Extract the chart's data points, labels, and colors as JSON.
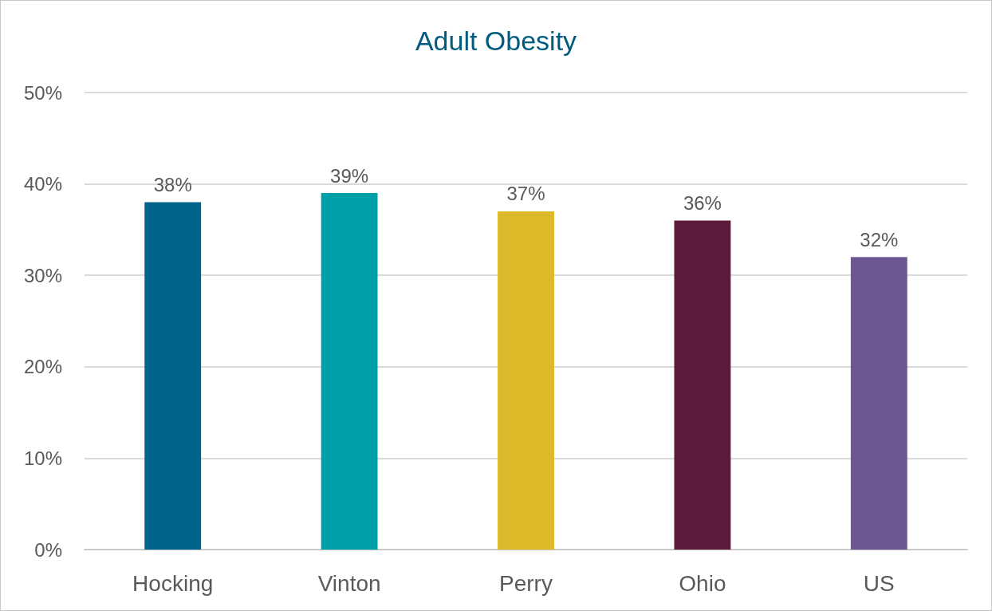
{
  "chart_data": {
    "type": "bar",
    "title": "Adult Obesity",
    "categories": [
      "Hocking",
      "Vinton",
      "Perry",
      "Ohio",
      "US"
    ],
    "values": [
      38,
      39,
      37,
      36,
      32
    ],
    "colors": [
      "#00638b",
      "#00a0a8",
      "#dbb928",
      "#5c1a3d",
      "#6e5692"
    ],
    "value_labels": [
      "38%",
      "39%",
      "37%",
      "36%",
      "32%"
    ],
    "ylim": [
      0,
      50
    ],
    "yticks": [
      {
        "value": 0,
        "label": "0%"
      },
      {
        "value": 10,
        "label": "10%"
      },
      {
        "value": 20,
        "label": "20%"
      },
      {
        "value": 30,
        "label": "30%"
      },
      {
        "value": 40,
        "label": "40%"
      },
      {
        "value": 50,
        "label": "50%"
      }
    ],
    "grid": "y"
  }
}
